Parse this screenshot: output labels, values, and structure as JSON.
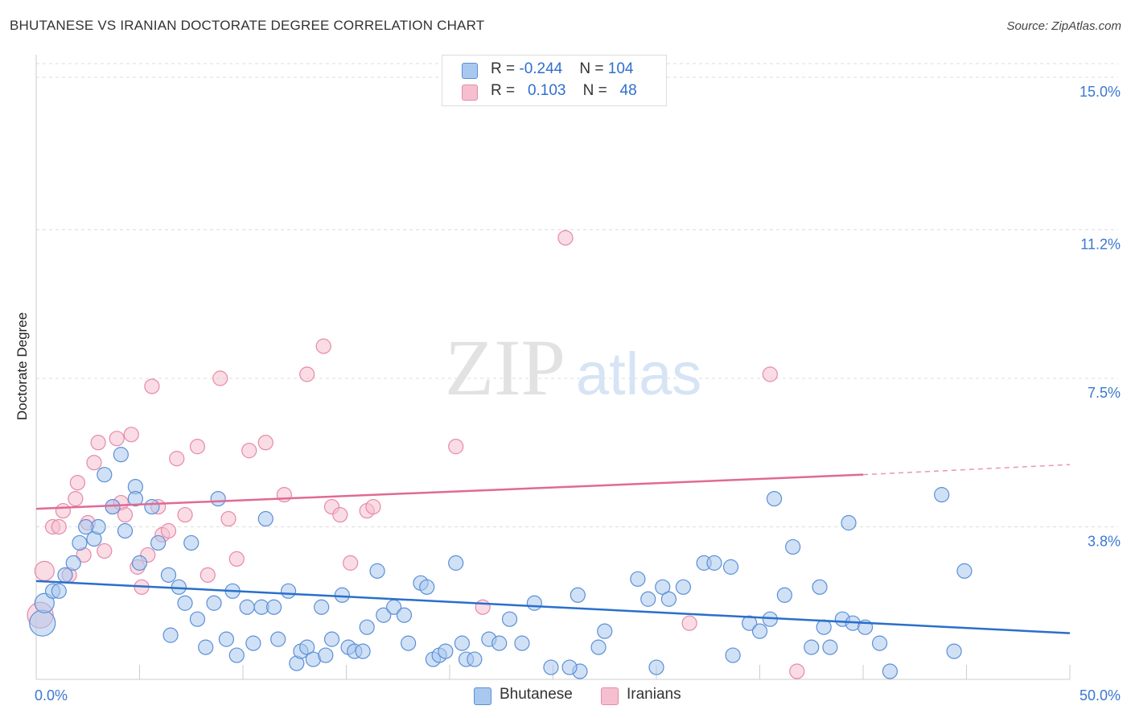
{
  "title": "BHUTANESE VS IRANIAN DOCTORATE DEGREE CORRELATION CHART",
  "source": "Source: ZipAtlas.com",
  "watermark": {
    "zip": "ZIP",
    "atlas": "atlas"
  },
  "colors": {
    "blue_fill": "#a9c8ef",
    "blue_stroke": "#5b8fd6",
    "blue_line": "#2a6fcc",
    "pink_fill": "#f6bfd0",
    "pink_stroke": "#e58aa8",
    "pink_line": "#e06a94",
    "grid": "#dddddd",
    "axis_text": "#3b78d0"
  },
  "legend": {
    "rows": [
      {
        "r_label": "R = ",
        "r_value": "-0.244",
        "n_label": "N = ",
        "n_value": "104",
        "series": "Bhutanese"
      },
      {
        "r_label": "R = ",
        "r_value": "0.103",
        "n_label": "N = ",
        "n_value": "48",
        "series": "Iranians"
      }
    ]
  },
  "chart_data": {
    "type": "scatter",
    "title": "BHUTANESE VS IRANIAN DOCTORATE DEGREE CORRELATION CHART",
    "xlabel": "",
    "ylabel": "Doctorate Degree",
    "xlim": [
      0,
      50
    ],
    "ylim": [
      0,
      15
    ],
    "x_tick_labels": [
      "0.0%",
      "50.0%"
    ],
    "y_ticks": [
      3.8,
      7.5,
      11.2,
      15.0
    ],
    "y_tick_labels": [
      "3.8%",
      "7.5%",
      "11.2%",
      "15.0%"
    ],
    "grid": true,
    "legend_position": "top-center",
    "series": [
      {
        "name": "Bhutanese",
        "r": -0.244,
        "n": 104,
        "trend": {
          "x": [
            0,
            50
          ],
          "y": [
            2.45,
            1.15
          ]
        },
        "points": [
          [
            0.3,
            1.4
          ],
          [
            0.4,
            1.9
          ],
          [
            0.8,
            2.2
          ],
          [
            1.1,
            2.2
          ],
          [
            1.4,
            2.6
          ],
          [
            1.8,
            2.9
          ],
          [
            2.1,
            3.4
          ],
          [
            2.8,
            3.5
          ],
          [
            3.0,
            3.8
          ],
          [
            2.4,
            3.8
          ],
          [
            3.3,
            5.1
          ],
          [
            4.1,
            5.6
          ],
          [
            3.7,
            4.3
          ],
          [
            4.8,
            4.8
          ],
          [
            4.3,
            3.7
          ],
          [
            4.8,
            4.5
          ],
          [
            5.0,
            2.9
          ],
          [
            5.6,
            4.3
          ],
          [
            5.9,
            3.4
          ],
          [
            6.4,
            2.6
          ],
          [
            6.9,
            2.3
          ],
          [
            7.2,
            1.9
          ],
          [
            7.5,
            3.4
          ],
          [
            6.5,
            1.1
          ],
          [
            7.8,
            1.5
          ],
          [
            8.2,
            0.8
          ],
          [
            8.6,
            1.9
          ],
          [
            8.8,
            4.5
          ],
          [
            9.2,
            1.0
          ],
          [
            9.5,
            2.2
          ],
          [
            9.7,
            0.6
          ],
          [
            10.2,
            1.8
          ],
          [
            10.5,
            0.9
          ],
          [
            10.9,
            1.8
          ],
          [
            11.1,
            4.0
          ],
          [
            11.5,
            1.8
          ],
          [
            11.7,
            1.0
          ],
          [
            12.2,
            2.2
          ],
          [
            12.6,
            0.4
          ],
          [
            12.8,
            0.7
          ],
          [
            13.1,
            0.8
          ],
          [
            13.4,
            0.5
          ],
          [
            13.8,
            1.8
          ],
          [
            14.0,
            0.6
          ],
          [
            14.3,
            1.0
          ],
          [
            14.8,
            2.1
          ],
          [
            15.1,
            0.8
          ],
          [
            15.4,
            0.7
          ],
          [
            15.8,
            0.7
          ],
          [
            16.0,
            1.3
          ],
          [
            16.5,
            2.7
          ],
          [
            16.8,
            1.6
          ],
          [
            17.3,
            1.8
          ],
          [
            17.8,
            1.6
          ],
          [
            18.0,
            0.9
          ],
          [
            18.6,
            2.4
          ],
          [
            18.9,
            2.3
          ],
          [
            19.2,
            0.5
          ],
          [
            19.5,
            0.6
          ],
          [
            19.8,
            0.7
          ],
          [
            20.3,
            2.9
          ],
          [
            20.6,
            0.9
          ],
          [
            20.8,
            0.5
          ],
          [
            21.2,
            0.5
          ],
          [
            21.9,
            1.0
          ],
          [
            22.4,
            0.9
          ],
          [
            22.9,
            1.5
          ],
          [
            23.5,
            0.9
          ],
          [
            24.1,
            1.9
          ],
          [
            24.9,
            0.3
          ],
          [
            26.2,
            2.1
          ],
          [
            26.3,
            0.2
          ],
          [
            27.2,
            0.8
          ],
          [
            27.5,
            1.2
          ],
          [
            29.1,
            2.5
          ],
          [
            29.6,
            2.0
          ],
          [
            30.3,
            2.3
          ],
          [
            30.6,
            2.0
          ],
          [
            31.3,
            2.3
          ],
          [
            32.3,
            2.9
          ],
          [
            32.8,
            2.9
          ],
          [
            33.6,
            2.8
          ],
          [
            33.7,
            0.6
          ],
          [
            34.5,
            1.4
          ],
          [
            35.0,
            1.2
          ],
          [
            35.5,
            1.5
          ],
          [
            35.7,
            4.5
          ],
          [
            36.2,
            2.1
          ],
          [
            36.6,
            3.3
          ],
          [
            37.5,
            0.8
          ],
          [
            37.9,
            2.3
          ],
          [
            38.1,
            1.3
          ],
          [
            38.4,
            0.8
          ],
          [
            39.0,
            1.5
          ],
          [
            39.3,
            3.9
          ],
          [
            39.5,
            1.4
          ],
          [
            40.1,
            1.3
          ],
          [
            40.8,
            0.9
          ],
          [
            41.3,
            0.2
          ],
          [
            43.8,
            4.6
          ],
          [
            44.4,
            0.7
          ],
          [
            44.9,
            2.7
          ],
          [
            30.0,
            0.3
          ],
          [
            25.8,
            0.3
          ]
        ]
      },
      {
        "name": "Iranians",
        "r": 0.103,
        "n": 48,
        "trend": {
          "x": [
            0,
            40
          ],
          "y": [
            4.25,
            5.1
          ]
        },
        "trend_extension": {
          "x": [
            40,
            50
          ],
          "y": [
            5.1,
            5.35
          ]
        },
        "points": [
          [
            0.2,
            1.6
          ],
          [
            0.4,
            2.7
          ],
          [
            0.8,
            3.8
          ],
          [
            1.1,
            3.8
          ],
          [
            1.3,
            4.2
          ],
          [
            1.6,
            2.6
          ],
          [
            1.9,
            4.5
          ],
          [
            2.0,
            4.9
          ],
          [
            2.3,
            3.1
          ],
          [
            2.5,
            3.9
          ],
          [
            2.8,
            5.4
          ],
          [
            3.0,
            5.9
          ],
          [
            3.3,
            3.2
          ],
          [
            3.7,
            4.3
          ],
          [
            3.9,
            6.0
          ],
          [
            4.1,
            4.4
          ],
          [
            4.3,
            4.1
          ],
          [
            4.6,
            6.1
          ],
          [
            4.9,
            2.8
          ],
          [
            5.1,
            2.3
          ],
          [
            5.4,
            3.1
          ],
          [
            5.6,
            7.3
          ],
          [
            5.9,
            4.3
          ],
          [
            6.1,
            3.6
          ],
          [
            6.4,
            3.7
          ],
          [
            6.8,
            5.5
          ],
          [
            7.2,
            4.1
          ],
          [
            7.8,
            5.8
          ],
          [
            8.3,
            2.6
          ],
          [
            8.9,
            7.5
          ],
          [
            9.3,
            4.0
          ],
          [
            9.7,
            3.0
          ],
          [
            10.3,
            5.7
          ],
          [
            11.1,
            5.9
          ],
          [
            12.0,
            4.6
          ],
          [
            13.1,
            7.6
          ],
          [
            13.9,
            8.3
          ],
          [
            14.3,
            4.3
          ],
          [
            14.7,
            4.1
          ],
          [
            15.2,
            2.9
          ],
          [
            16.0,
            4.2
          ],
          [
            16.3,
            4.3
          ],
          [
            20.3,
            5.8
          ],
          [
            21.6,
            1.8
          ],
          [
            25.6,
            11.0
          ],
          [
            31.6,
            1.4
          ],
          [
            35.5,
            7.6
          ],
          [
            36.8,
            0.2
          ]
        ]
      }
    ]
  },
  "bottom_legend": [
    {
      "label": "Bhutanese"
    },
    {
      "label": "Iranians"
    }
  ]
}
